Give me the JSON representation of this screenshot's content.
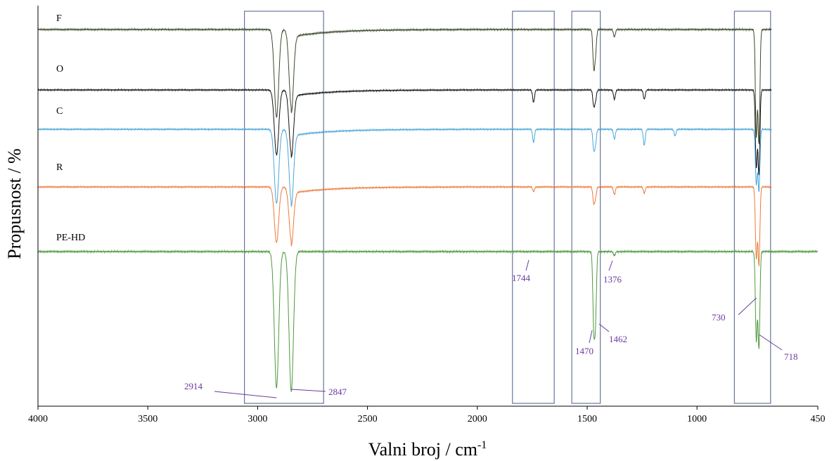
{
  "colors": {
    "axis": "#000000",
    "box": "#4a5a8a",
    "annotation": "#6a3aa0",
    "F": "#3b4a2a",
    "O": "#111111",
    "C": "#4aa6d8",
    "R": "#ee7a38",
    "PE-HD": "#4c9a3c"
  },
  "chart_data": {
    "type": "line",
    "xlabel": "Valni broj / cm",
    "xlabel_superscript": "-1",
    "ylabel": "Propusnost / %",
    "xlim": [
      4000,
      450
    ],
    "x_reversed": true,
    "xticks": [
      4000,
      3500,
      3000,
      2500,
      2000,
      1500,
      1000,
      450
    ],
    "y_ticks_shown": false,
    "grid": false,
    "legend": "inline labels at left of each trace",
    "series": [
      {
        "name": "F",
        "x_range": [
          4000,
          660
        ],
        "baseline": 100,
        "bands": [
          {
            "x": 2914,
            "depth": 48
          },
          {
            "x": 2847,
            "depth": 42
          },
          {
            "x": 1470,
            "depth": 20
          },
          {
            "x": 1462,
            "depth": 12
          },
          {
            "x": 1376,
            "depth": 4
          },
          {
            "x": 730,
            "depth": 58
          },
          {
            "x": 718,
            "depth": 62
          }
        ]
      },
      {
        "name": "O",
        "x_range": [
          4000,
          660
        ],
        "baseline": 100,
        "bands": [
          {
            "x": 2914,
            "depth": 42
          },
          {
            "x": 2847,
            "depth": 40
          },
          {
            "x": 1744,
            "depth": 8
          },
          {
            "x": 1470,
            "depth": 10
          },
          {
            "x": 1462,
            "depth": 6
          },
          {
            "x": 1376,
            "depth": 6
          },
          {
            "x": 1240,
            "depth": 6
          },
          {
            "x": 730,
            "depth": 50
          },
          {
            "x": 718,
            "depth": 54
          }
        ]
      },
      {
        "name": "C",
        "x_range": [
          4000,
          660
        ],
        "baseline": 100,
        "bands": [
          {
            "x": 2914,
            "depth": 46
          },
          {
            "x": 2847,
            "depth": 44
          },
          {
            "x": 1744,
            "depth": 8
          },
          {
            "x": 1470,
            "depth": 12
          },
          {
            "x": 1462,
            "depth": 8
          },
          {
            "x": 1376,
            "depth": 6
          },
          {
            "x": 1240,
            "depth": 10
          },
          {
            "x": 1100,
            "depth": 4
          },
          {
            "x": 730,
            "depth": 34
          },
          {
            "x": 718,
            "depth": 38
          }
        ]
      },
      {
        "name": "R",
        "x_range": [
          4000,
          660
        ],
        "baseline": 100,
        "bands": [
          {
            "x": 2914,
            "depth": 36
          },
          {
            "x": 2847,
            "depth": 34
          },
          {
            "x": 1744,
            "depth": 3
          },
          {
            "x": 1470,
            "depth": 10
          },
          {
            "x": 1462,
            "depth": 6
          },
          {
            "x": 1376,
            "depth": 5
          },
          {
            "x": 1240,
            "depth": 4
          },
          {
            "x": 730,
            "depth": 46
          },
          {
            "x": 718,
            "depth": 50
          }
        ]
      },
      {
        "name": "PE-HD",
        "x_range": [
          4000,
          450
        ],
        "baseline": 100,
        "bands": [
          {
            "x": 2914,
            "depth": 68
          },
          {
            "x": 2847,
            "depth": 70
          },
          {
            "x": 1470,
            "depth": 36
          },
          {
            "x": 1462,
            "depth": 32
          },
          {
            "x": 1376,
            "depth": 2
          },
          {
            "x": 730,
            "depth": 44
          },
          {
            "x": 718,
            "depth": 48
          }
        ]
      }
    ],
    "highlight_regions": [
      [
        3060,
        2700
      ],
      [
        1840,
        1650
      ],
      [
        1570,
        1440
      ],
      [
        830,
        665
      ]
    ],
    "annotations": [
      "2914",
      "2847",
      "1744",
      "1376",
      "1470",
      "1462",
      "730",
      "718"
    ]
  }
}
